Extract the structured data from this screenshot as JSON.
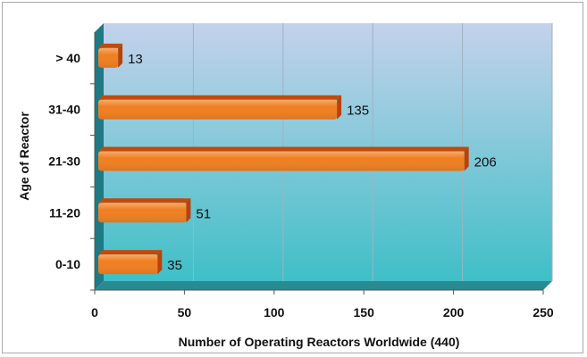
{
  "chart_data": {
    "type": "bar",
    "orientation": "horizontal",
    "categories": [
      "0-10",
      "11-20",
      "21-30",
      "31-40",
      "> 40"
    ],
    "values": [
      35,
      51,
      206,
      135,
      13
    ],
    "xlabel": "Number of Operating Reactors Worldwide (440)",
    "ylabel": "Age of Reactor",
    "xlim": [
      0,
      250
    ],
    "xticks": [
      0,
      50,
      100,
      150,
      200,
      250
    ],
    "grid": true,
    "bar_color": "#f07f21",
    "bar_top_color": "#c04a0c",
    "plot_gradient": [
      "#c4d2ec",
      "#3fbfc6"
    ],
    "wall_color": "#1f7a84",
    "floor_color": "#2a8a92"
  }
}
